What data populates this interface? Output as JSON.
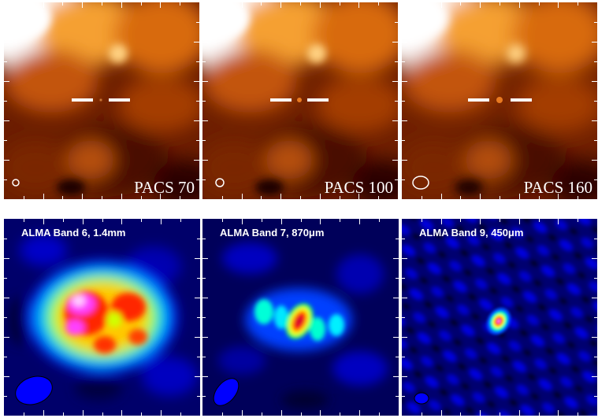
{
  "panels_top": [
    {
      "label": "PACS 70",
      "beam": "circle-small"
    },
    {
      "label": "PACS 100",
      "beam": "circle-small"
    },
    {
      "label": "PACS 160",
      "beam": "ellipse-medium"
    }
  ],
  "panels_bottom": [
    {
      "label": "ALMA Band 6, 1.4mm"
    },
    {
      "label": "ALMA Band 7, 870μm"
    },
    {
      "label": "ALMA Band 9, 450μm"
    }
  ],
  "colors": {
    "pacs_colormap": [
      "#000000",
      "#4a0c00",
      "#8a2e00",
      "#c85a06",
      "#f59a2a",
      "#fde08a",
      "#ffffff"
    ],
    "alma_colormap": [
      "#000010",
      "#0000a0",
      "#0020ff",
      "#00d0ff",
      "#00ff60",
      "#ffff00",
      "#ff3000",
      "#ff40ff",
      "#ffffff"
    ]
  }
}
